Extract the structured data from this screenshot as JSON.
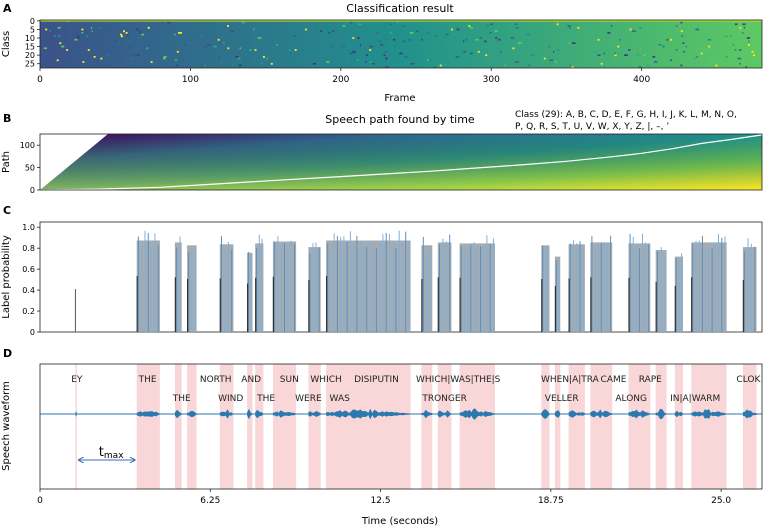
{
  "chart_data": [
    {
      "panel": "A",
      "type": "heatmap",
      "title": "Classification result",
      "xlabel": "Frame",
      "ylabel": "Class",
      "xlim": [
        0,
        480
      ],
      "ylim": [
        0,
        28
      ],
      "xticks": [
        0,
        100,
        200,
        300,
        400
      ],
      "yticks": [
        0,
        5,
        10,
        15,
        20,
        25
      ],
      "colormap": "viridis"
    },
    {
      "panel": "B",
      "type": "heatmap",
      "title": "Speech path found by time",
      "ylabel": "Path",
      "xlim": [
        0,
        480
      ],
      "ylim": [
        0,
        125
      ],
      "yticks": [
        0,
        50,
        100
      ],
      "legend_lines": [
        "Class (29): A, B, C, D, E, F, G, H, I, J, K, L, M, N, O,",
        "P, Q, R, S, T, U, V, W, X, Y, Z, |,  –, ’"
      ],
      "path_points": [
        [
          0,
          0
        ],
        [
          40,
          2
        ],
        [
          80,
          6
        ],
        [
          110,
          12
        ],
        [
          140,
          18
        ],
        [
          170,
          24
        ],
        [
          200,
          30
        ],
        [
          230,
          36
        ],
        [
          260,
          42
        ],
        [
          290,
          49
        ],
        [
          320,
          56
        ],
        [
          350,
          64
        ],
        [
          380,
          74
        ],
        [
          400,
          82
        ],
        [
          420,
          92
        ],
        [
          440,
          104
        ],
        [
          460,
          113
        ],
        [
          480,
          123
        ]
      ]
    },
    {
      "panel": "C",
      "type": "bar",
      "ylabel": "Label probability",
      "xlim": [
        0,
        26.5
      ],
      "ylim": [
        0,
        1.05
      ],
      "yticks": [
        0,
        0.2,
        0.4,
        0.6,
        0.8,
        1.0
      ],
      "yticklabels": [
        "0",
        "0.2",
        "0.4",
        "0.6",
        "0.8",
        "1.0"
      ],
      "segments": [
        {
          "start": 1.3,
          "end": 1.35,
          "value": 0.41
        },
        {
          "start": 3.55,
          "end": 4.4,
          "value": 0.97
        },
        {
          "start": 4.95,
          "end": 5.2,
          "value": 0.95
        },
        {
          "start": 5.4,
          "end": 5.75,
          "value": 0.92
        },
        {
          "start": 6.6,
          "end": 7.1,
          "value": 0.93
        },
        {
          "start": 7.6,
          "end": 7.8,
          "value": 0.84
        },
        {
          "start": 7.9,
          "end": 8.2,
          "value": 0.94
        },
        {
          "start": 8.55,
          "end": 9.4,
          "value": 0.96
        },
        {
          "start": 9.85,
          "end": 10.3,
          "value": 0.9
        },
        {
          "start": 10.5,
          "end": 13.6,
          "value": 0.97
        },
        {
          "start": 14.0,
          "end": 14.4,
          "value": 0.92
        },
        {
          "start": 14.6,
          "end": 15.1,
          "value": 0.95
        },
        {
          "start": 15.4,
          "end": 16.7,
          "value": 0.94
        },
        {
          "start": 18.4,
          "end": 18.7,
          "value": 0.92
        },
        {
          "start": 18.9,
          "end": 19.1,
          "value": 0.8
        },
        {
          "start": 19.4,
          "end": 20.0,
          "value": 0.93
        },
        {
          "start": 20.2,
          "end": 21.0,
          "value": 0.95
        },
        {
          "start": 21.6,
          "end": 22.4,
          "value": 0.94
        },
        {
          "start": 22.6,
          "end": 23.0,
          "value": 0.87
        },
        {
          "start": 23.3,
          "end": 23.6,
          "value": 0.8
        },
        {
          "start": 23.9,
          "end": 25.2,
          "value": 0.95
        },
        {
          "start": 25.8,
          "end": 26.3,
          "value": 0.9
        }
      ]
    },
    {
      "panel": "D",
      "type": "line",
      "ylabel": "Speech waveform",
      "xlabel": "Time (seconds)",
      "xlim": [
        0,
        26.5
      ],
      "xticks": [
        0,
        6.25,
        12.5,
        18.75,
        25.0
      ],
      "xticklabels": [
        "0",
        "6.25",
        "12.5",
        "18.75",
        "25.0"
      ],
      "words": [
        {
          "label": "EY",
          "time": 1.35,
          "row": 0
        },
        {
          "label": "THE",
          "time": 3.95,
          "row": 0
        },
        {
          "label": "THE",
          "time": 5.2,
          "row": 1
        },
        {
          "label": "NORTH",
          "time": 6.45,
          "row": 0
        },
        {
          "label": "WIND",
          "time": 7.0,
          "row": 1
        },
        {
          "label": "AND",
          "time": 7.75,
          "row": 0
        },
        {
          "label": "THE",
          "time": 8.3,
          "row": 1
        },
        {
          "label": "SUN",
          "time": 9.15,
          "row": 0
        },
        {
          "label": "WERE",
          "time": 9.85,
          "row": 1
        },
        {
          "label": "WHICH",
          "time": 10.5,
          "row": 0
        },
        {
          "label": "WAS",
          "time": 11.0,
          "row": 1
        },
        {
          "label": "DISIPUTIN",
          "time": 12.35,
          "row": 0
        },
        {
          "label": "WHICH|WAS|THE|S",
          "time": 15.35,
          "row": 0
        },
        {
          "label": "TRONGER",
          "time": 14.85,
          "row": 1
        },
        {
          "label": "WHEN|A|TRA",
          "time": 19.45,
          "row": 0
        },
        {
          "label": "VELLER",
          "time": 19.15,
          "row": 1
        },
        {
          "label": "CAME",
          "time": 21.05,
          "row": 0
        },
        {
          "label": "ALONG",
          "time": 21.7,
          "row": 1
        },
        {
          "label": "RAPE",
          "time": 22.4,
          "row": 0
        },
        {
          "label": "IN|A|WARM",
          "time": 24.05,
          "row": 1
        },
        {
          "label": "CLOK",
          "time": 26.0,
          "row": 0
        }
      ],
      "annotation": {
        "label": "t",
        "subscript": "max",
        "from": 1.35,
        "to": 3.55
      }
    }
  ],
  "panel_letters": [
    "A",
    "B",
    "C",
    "D"
  ]
}
